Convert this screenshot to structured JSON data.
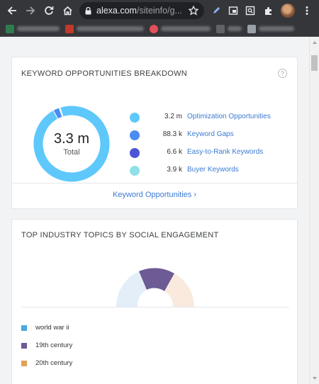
{
  "browser": {
    "url_host": "alexa.com",
    "url_path": "/siteinfo/g..."
  },
  "keyword_card": {
    "title": "KEYWORD OPPORTUNITIES BREAKDOWN",
    "help": "?",
    "total_value": "3.3 m",
    "total_label": "Total",
    "items": [
      {
        "value": "3.2 m",
        "label": "Optimization Opportunities",
        "color": "#5ec8fb"
      },
      {
        "value": "88.3 k",
        "label": "Keyword Gaps",
        "color": "#4a8cf0"
      },
      {
        "value": "6.6 k",
        "label": "Easy-to-Rank Keywords",
        "color": "#4d55d6"
      },
      {
        "value": "3.9 k",
        "label": "Buyer Keywords",
        "color": "#8fe0e9"
      }
    ],
    "footer_link": "Keyword Opportunities ›"
  },
  "topics_card": {
    "title": "TOP INDUSTRY TOPICS BY SOCIAL ENGAGEMENT",
    "topics": [
      {
        "label": "world war ii",
        "color": "#4aa8e0",
        "fill": "#e3eef8"
      },
      {
        "label": "19th century",
        "color": "#6c5b95",
        "fill": "#6c5b95"
      },
      {
        "label": "20th century",
        "color": "#e0a15a",
        "fill": "#f9eadd"
      }
    ]
  }
}
